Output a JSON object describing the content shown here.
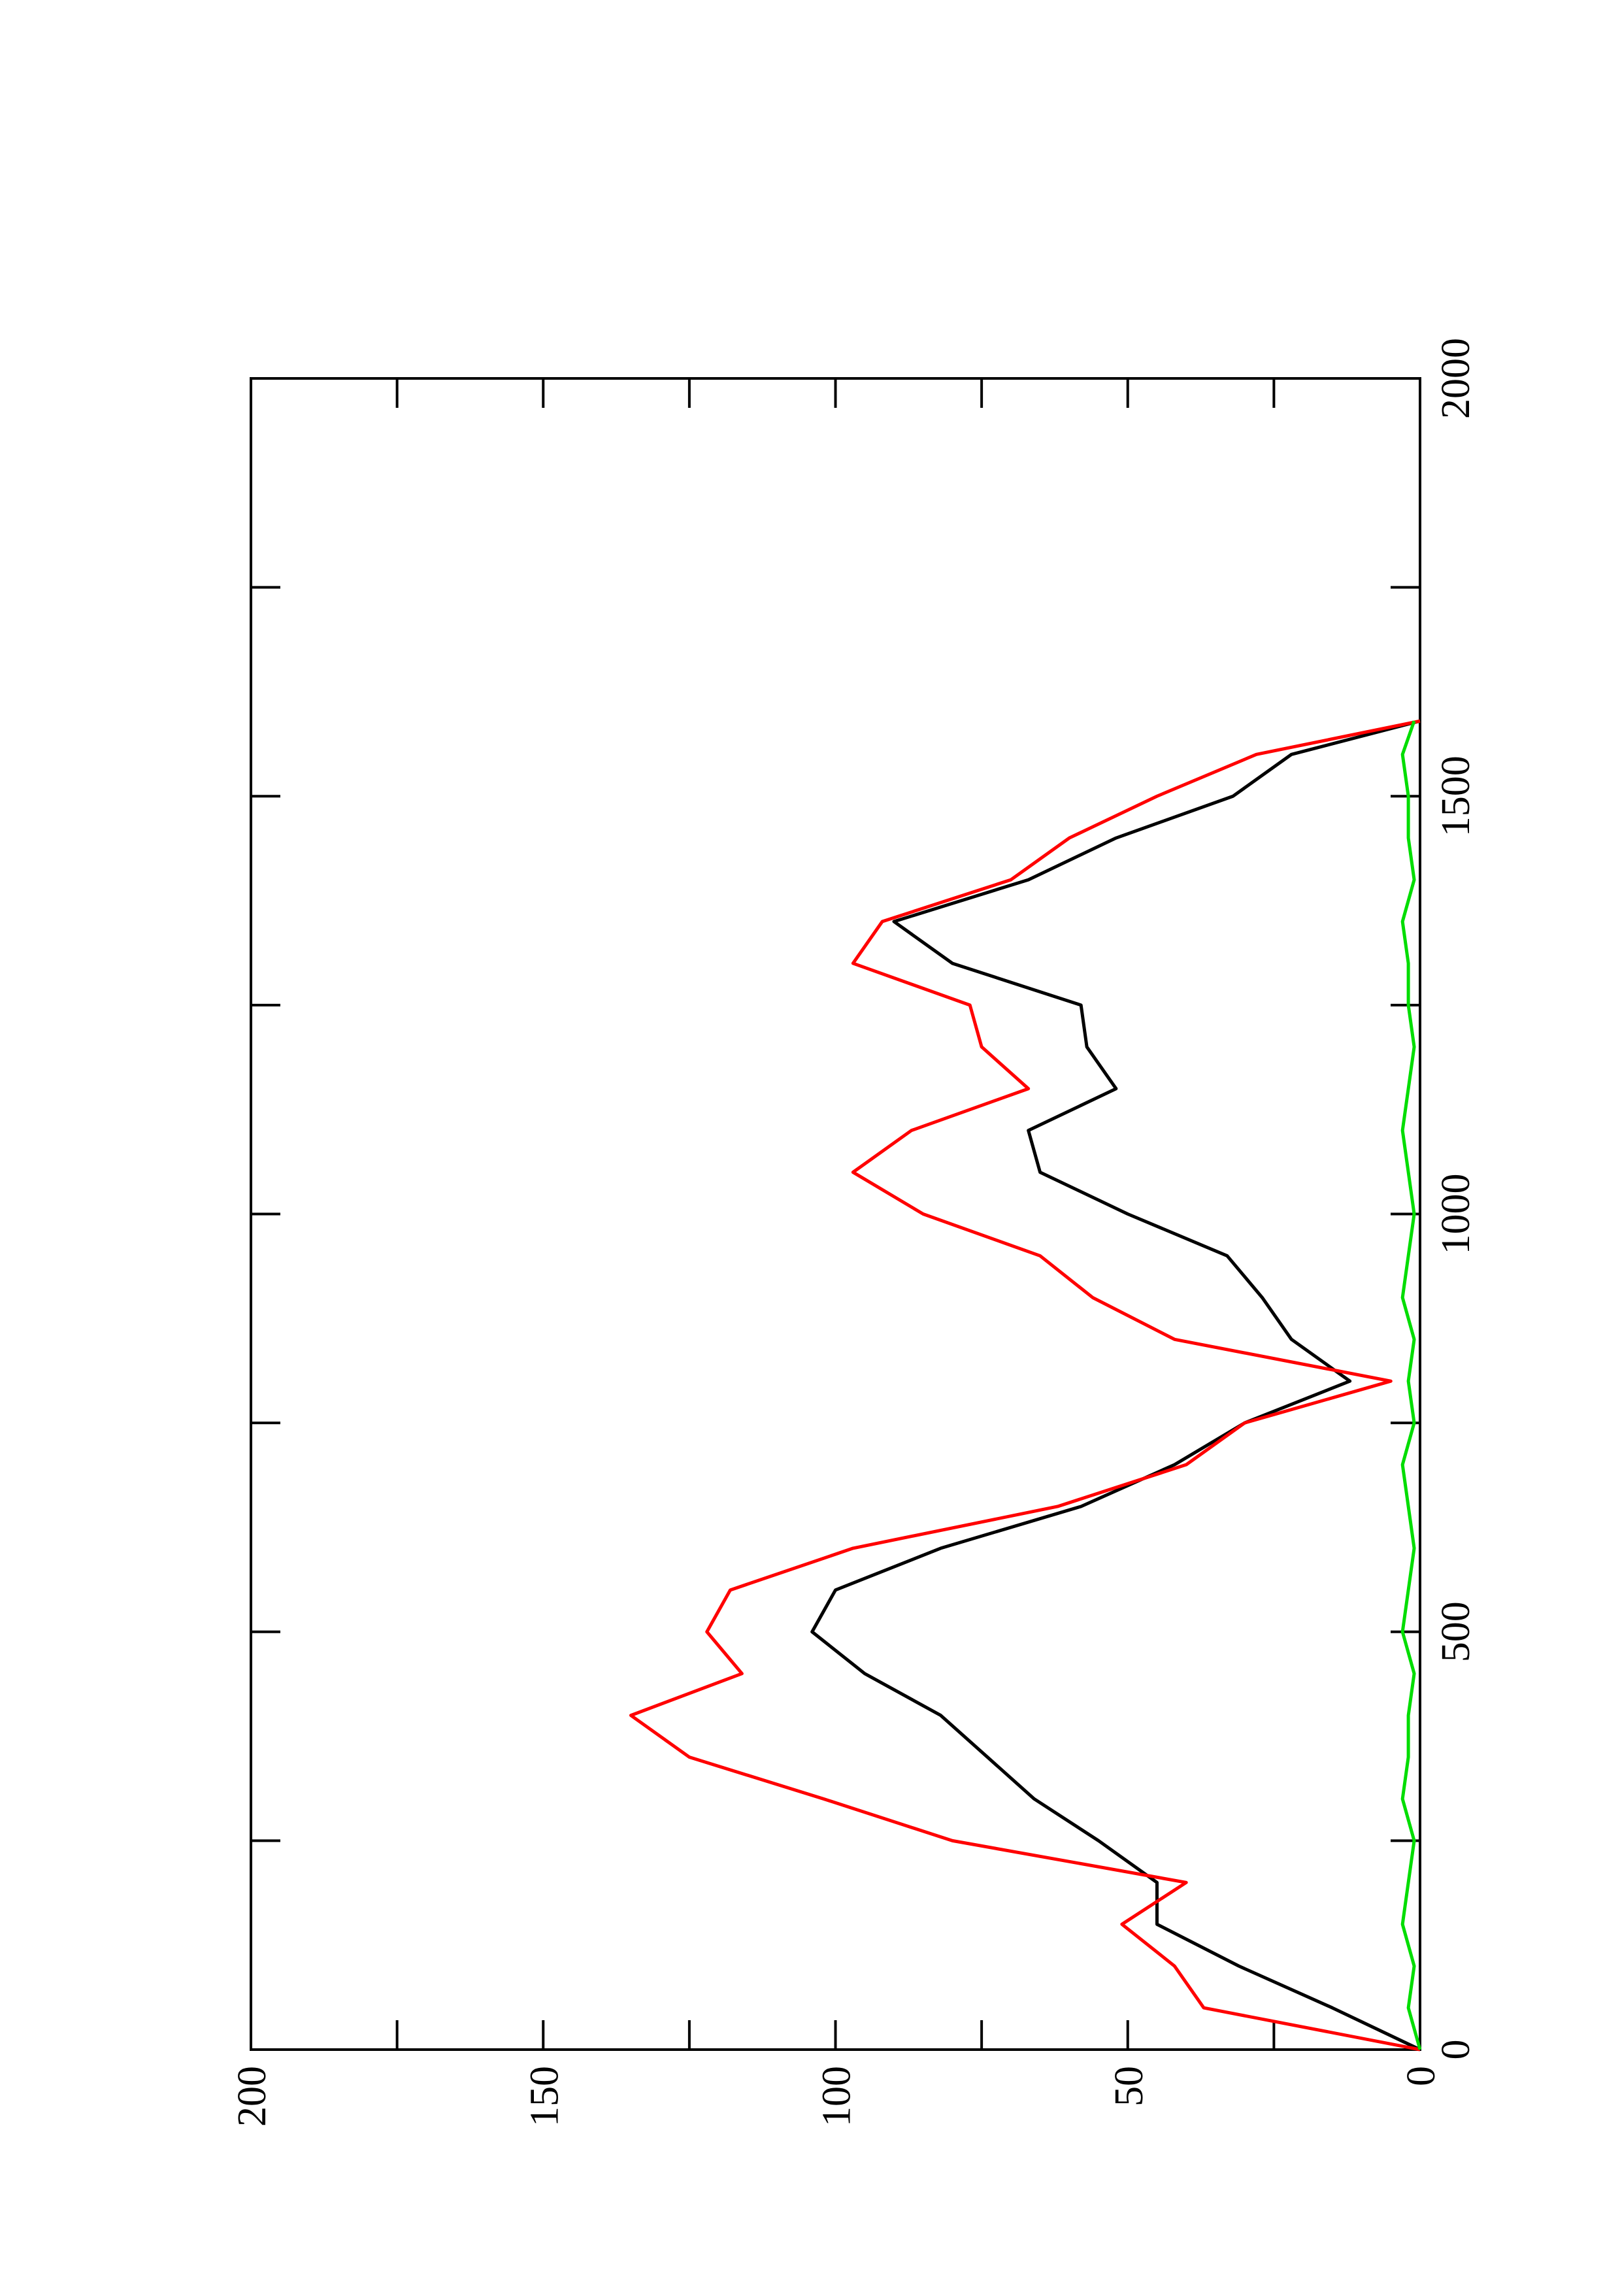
{
  "chart_data": {
    "type": "line",
    "x": [
      0,
      50,
      100,
      150,
      200,
      250,
      300,
      350,
      400,
      450,
      500,
      550,
      600,
      650,
      700,
      750,
      800,
      850,
      900,
      950,
      1000,
      1050,
      1100,
      1150,
      1200,
      1250,
      1300,
      1350,
      1400,
      1450,
      1500,
      1550,
      1590
    ],
    "series": [
      {
        "color": "#000000",
        "values": [
          0,
          15,
          31,
          45,
          45,
          55,
          66,
          74,
          82,
          95,
          104,
          100,
          82,
          58,
          42,
          30,
          12,
          22,
          27,
          33,
          50,
          65,
          67,
          52,
          57,
          58,
          80,
          90,
          67,
          52,
          32,
          22,
          0
        ]
      },
      {
        "color": "#ff0000",
        "values": [
          0,
          37,
          42,
          51,
          40,
          80,
          102,
          125,
          135,
          116,
          122,
          118,
          97,
          62,
          40,
          30,
          5,
          42,
          56,
          65,
          85,
          97,
          87,
          67,
          75,
          77,
          97,
          92,
          70,
          60,
          45,
          28,
          0
        ]
      },
      {
        "color": "#00dd00",
        "values": [
          0,
          2,
          1,
          3,
          2,
          1,
          3,
          2,
          2,
          1,
          3,
          2,
          1,
          2,
          3,
          1,
          2,
          1,
          3,
          2,
          1,
          2,
          3,
          2,
          1,
          2,
          2,
          3,
          1,
          2,
          2,
          3,
          1
        ]
      }
    ],
    "xlim": [
      0,
      2000
    ],
    "xticks": [
      0,
      500,
      1000,
      1500,
      2000
    ],
    "xminorticks": [
      250,
      750,
      1250,
      1750
    ],
    "ylim": [
      0,
      200
    ],
    "yticks": [
      0,
      50,
      100,
      150,
      200
    ],
    "yminorticks": [
      25,
      75,
      125,
      175
    ],
    "rotated": true
  }
}
